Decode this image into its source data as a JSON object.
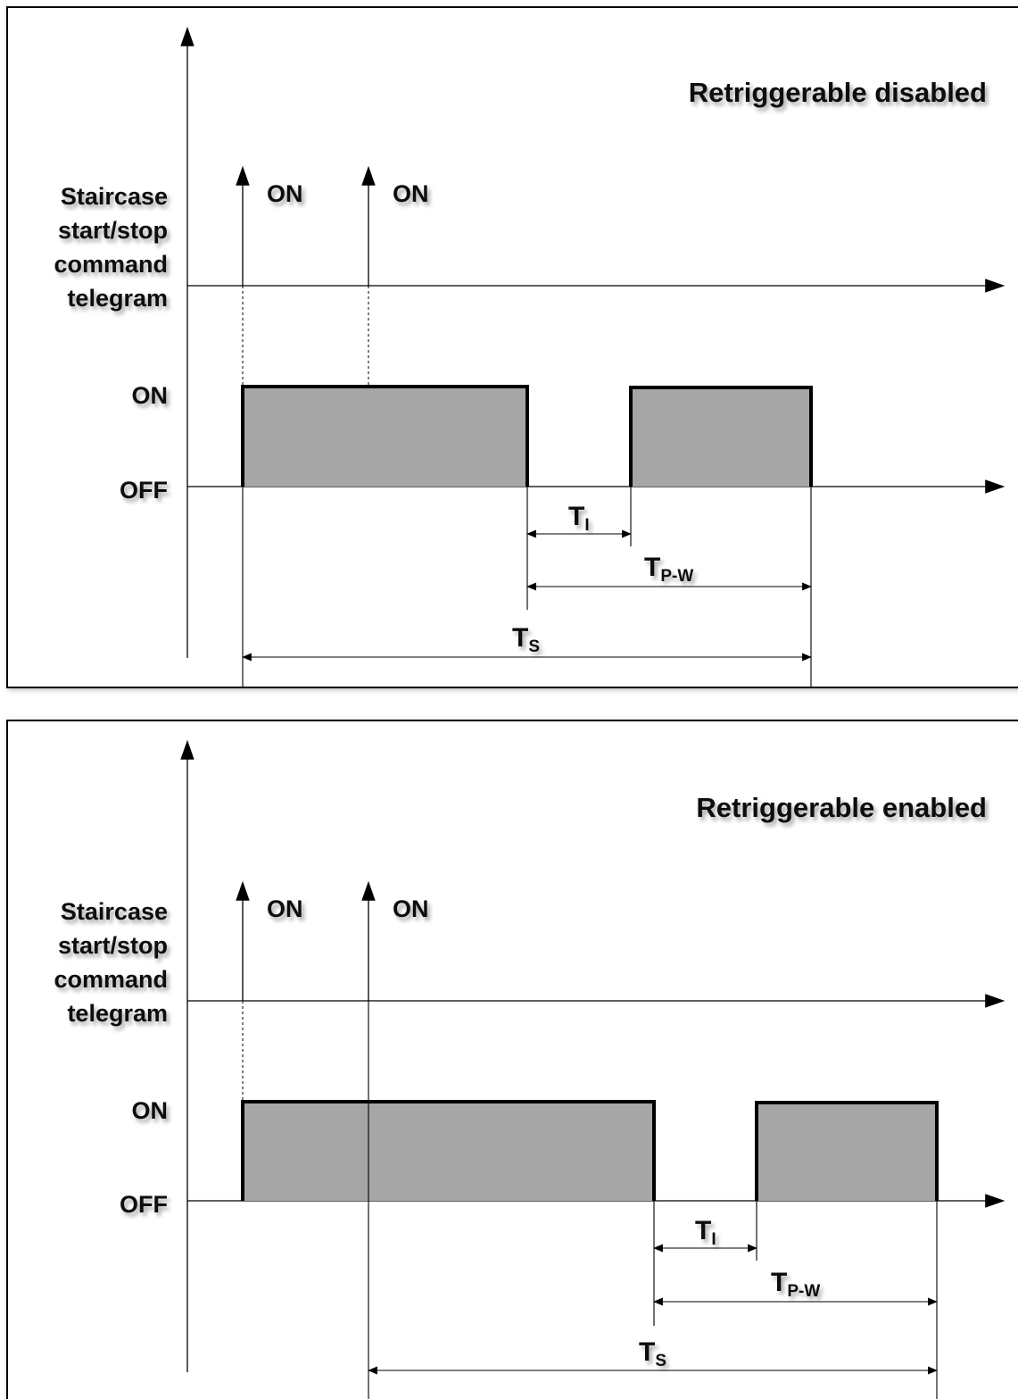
{
  "diagrams": [
    {
      "title": "Retriggerable disabled",
      "y_label_lines": [
        "Staircase",
        "start/stop",
        "command",
        "telegram"
      ],
      "level_on": "ON",
      "level_off": "OFF",
      "telegram_labels": [
        "ON",
        "ON"
      ],
      "ti": {
        "main": "T",
        "sub": "I"
      },
      "tpw": {
        "main": "T",
        "sub": "P-W"
      },
      "ts": {
        "main": "T",
        "sub": "S"
      }
    },
    {
      "title": "Retriggerable enabled",
      "y_label_lines": [
        "Staircase",
        "start/stop",
        "command",
        "telegram"
      ],
      "level_on": "ON",
      "level_off": "OFF",
      "telegram_labels": [
        "ON",
        "ON"
      ],
      "ti": {
        "main": "T",
        "sub": "I"
      },
      "tpw": {
        "main": "T",
        "sub": "P-W"
      },
      "ts": {
        "main": "T",
        "sub": "S"
      }
    }
  ],
  "colors": {
    "pulse_fill": "#a6a6a6",
    "line": "#000000",
    "background": "#ffffff"
  }
}
